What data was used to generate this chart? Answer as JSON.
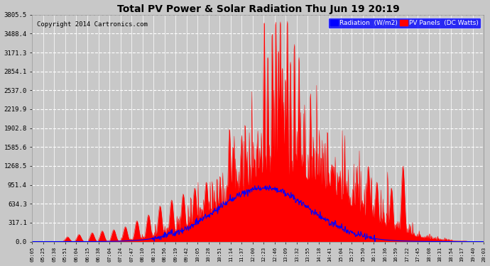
{
  "title": "Total PV Power & Solar Radiation Thu Jun 19 20:19",
  "copyright": "Copyright 2014 Cartronics.com",
  "legend_radiation": "Radiation  (W/m2)",
  "legend_pv": "PV Panels  (DC Watts)",
  "yticks": [
    0.0,
    317.1,
    634.3,
    951.4,
    1268.5,
    1585.6,
    1902.8,
    2219.9,
    2537.0,
    2854.1,
    3171.3,
    3488.4,
    3805.5
  ],
  "ymax": 3805.5,
  "background_color": "#c8c8c8",
  "plot_bg_color": "#c8c8c8",
  "grid_color": "white",
  "red_fill_color": "#ff0000",
  "blue_line_color": "#0000ff",
  "xtick_labels": [
    "05:05",
    "05:25",
    "05:38",
    "05:51",
    "06:04",
    "06:15",
    "06:38",
    "07:04",
    "07:24",
    "07:47",
    "08:10",
    "08:33",
    "08:56",
    "09:19",
    "09:42",
    "10:05",
    "10:28",
    "10:51",
    "11:14",
    "11:37",
    "12:00",
    "12:23",
    "12:46",
    "13:09",
    "13:32",
    "13:55",
    "14:18",
    "14:41",
    "15:04",
    "15:27",
    "15:50",
    "16:13",
    "16:36",
    "16:59",
    "17:22",
    "17:45",
    "18:08",
    "18:31",
    "18:54",
    "19:17",
    "19:40",
    "20:03"
  ]
}
